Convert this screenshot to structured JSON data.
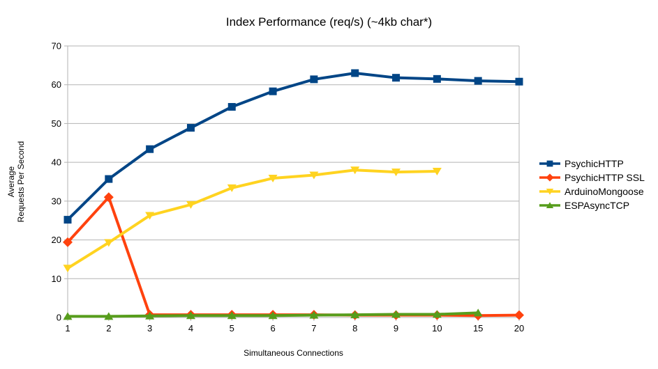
{
  "chart_data": {
    "type": "line",
    "title": "Index Performance (req/s) (~4kb char*)",
    "xlabel": "Simultaneous Connections",
    "ylabel": "Average\nRequests Per Second",
    "categories": [
      "1",
      "2",
      "3",
      "4",
      "5",
      "6",
      "7",
      "8",
      "9",
      "10",
      "15",
      "20"
    ],
    "ylim": [
      0,
      70
    ],
    "ytick_step": 10,
    "grid": "horizontal",
    "legend_position": "right",
    "background_color": "#ffffff",
    "axis_color": "#b3b3b3",
    "text_color": "#000000",
    "series": [
      {
        "name": "PsychicHTTP",
        "color": "#004586",
        "marker": "square",
        "values": [
          25.2,
          35.7,
          43.4,
          48.9,
          54.3,
          58.3,
          61.4,
          63.0,
          61.8,
          61.5,
          61.0,
          60.8
        ]
      },
      {
        "name": "PsychicHTTP SSL",
        "color": "#FF420E",
        "marker": "diamond",
        "values": [
          19.4,
          31.0,
          0.7,
          0.7,
          0.7,
          0.7,
          0.7,
          0.6,
          0.6,
          0.6,
          0.5,
          0.6
        ]
      },
      {
        "name": "ArduinoMongoose",
        "color": "#FFD320",
        "marker": "triangle-down",
        "values": [
          12.7,
          19.3,
          26.3,
          29.1,
          33.4,
          35.9,
          36.7,
          38.0,
          37.5,
          37.7,
          null,
          null
        ]
      },
      {
        "name": "ESPAsyncTCP",
        "color": "#579D1C",
        "marker": "triangle-up",
        "values": [
          0.3,
          0.3,
          0.4,
          0.5,
          0.5,
          0.5,
          0.6,
          0.7,
          0.8,
          0.8,
          1.2,
          null
        ]
      }
    ]
  }
}
